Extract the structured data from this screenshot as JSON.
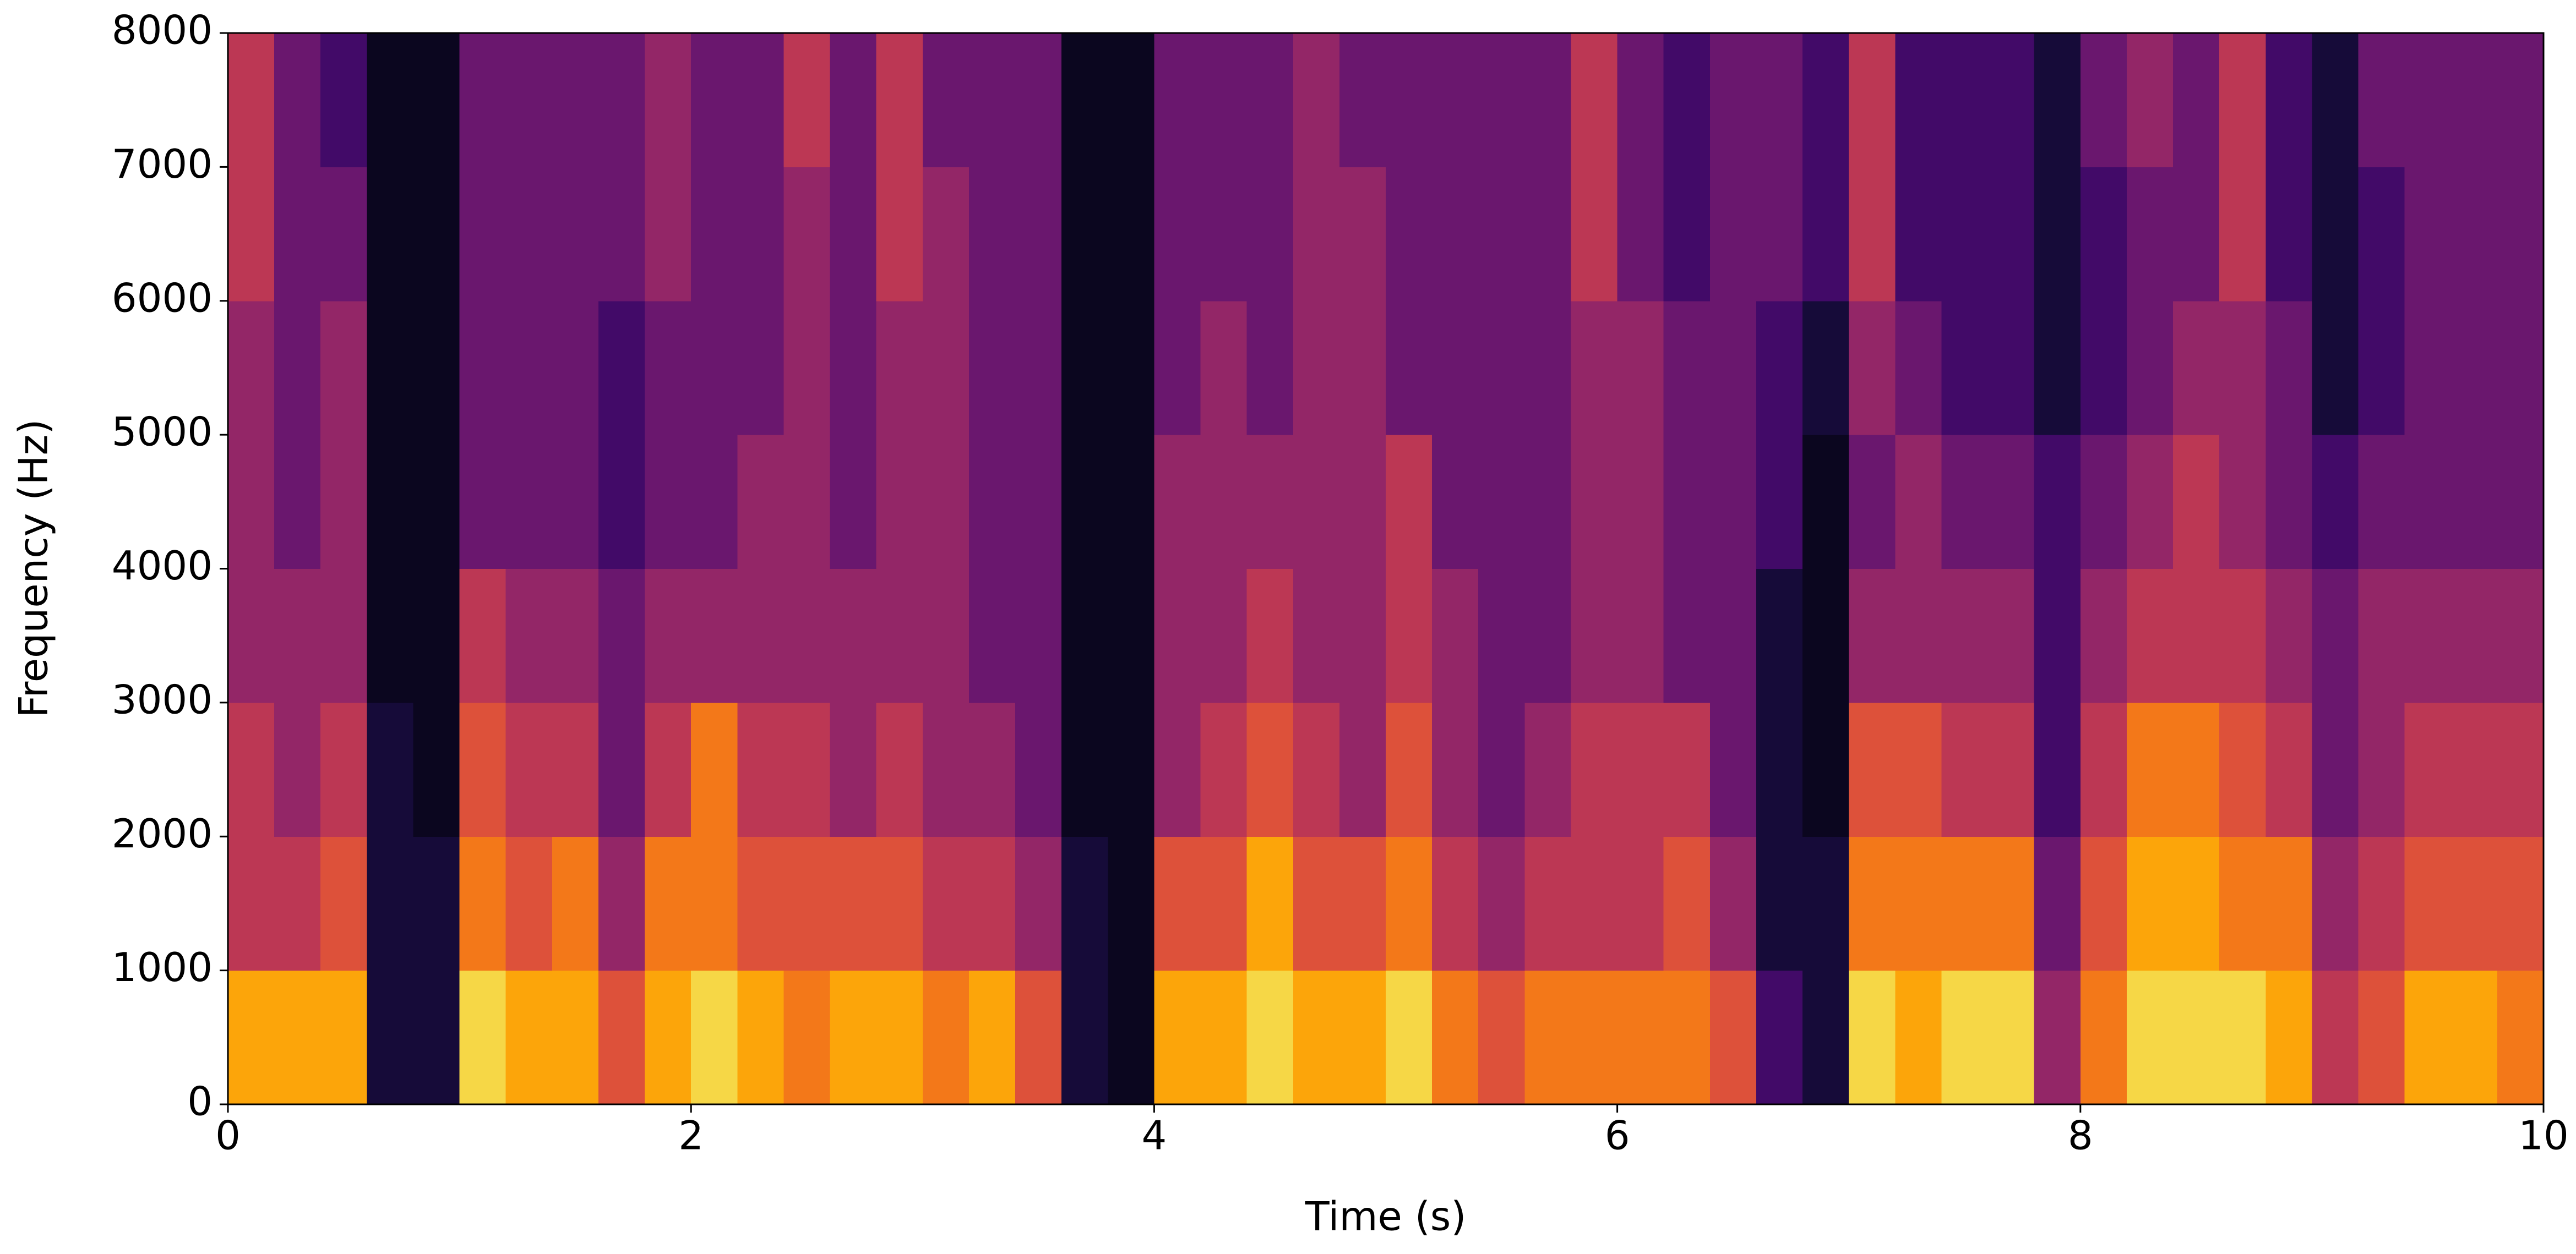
{
  "chart_data": {
    "type": "heatmap",
    "colormap": "inferno",
    "xlabel": "Time (s)",
    "ylabel": "Frequency (Hz)",
    "xlim": [
      0,
      10
    ],
    "ylim": [
      0,
      8000
    ],
    "zlim": [
      0,
      1
    ],
    "xticks": [
      0,
      2,
      4,
      6,
      8,
      10
    ],
    "yticks": [
      0,
      1000,
      2000,
      3000,
      4000,
      5000,
      6000,
      7000,
      8000
    ],
    "xbins": [
      0,
      0.2,
      0.4,
      0.6,
      0.8,
      1,
      1.2,
      1.4,
      1.6,
      1.8,
      2,
      2.2,
      2.4,
      2.6,
      2.8,
      3,
      3.2,
      3.4,
      3.6,
      3.8,
      4,
      4.2,
      4.4,
      4.6,
      4.8,
      5,
      5.2,
      5.4,
      5.6,
      5.8,
      6,
      6.2,
      6.4,
      6.6,
      6.8,
      7,
      7.2,
      7.4,
      7.6,
      7.8,
      8,
      8.2,
      8.4,
      8.6,
      8.8,
      9,
      9.2,
      9.4,
      9.6,
      9.8,
      10
    ],
    "ybins": [
      0,
      1000,
      2000,
      3000,
      4000,
      5000,
      6000,
      7000,
      8000
    ],
    "z": [
      [
        0.8,
        0.8,
        0.8,
        0.1,
        0.1,
        0.9,
        0.8,
        0.8,
        0.6,
        0.8,
        0.9,
        0.8,
        0.7,
        0.8,
        0.8,
        0.7,
        0.8,
        0.6,
        0.1,
        0.05,
        0.8,
        0.8,
        0.9,
        0.8,
        0.8,
        0.9,
        0.7,
        0.6,
        0.7,
        0.7,
        0.7,
        0.7,
        0.6,
        0.2,
        0.1,
        0.9,
        0.8,
        0.9,
        0.9,
        0.4,
        0.7,
        0.9,
        0.9,
        0.9,
        0.8,
        0.5,
        0.6,
        0.8,
        0.8,
        0.7
      ],
      [
        0.5,
        0.5,
        0.6,
        0.1,
        0.1,
        0.7,
        0.6,
        0.7,
        0.4,
        0.7,
        0.7,
        0.6,
        0.6,
        0.6,
        0.6,
        0.5,
        0.5,
        0.4,
        0.1,
        0.05,
        0.6,
        0.6,
        0.8,
        0.6,
        0.6,
        0.7,
        0.5,
        0.4,
        0.5,
        0.5,
        0.5,
        0.6,
        0.4,
        0.1,
        0.1,
        0.7,
        0.7,
        0.7,
        0.7,
        0.3,
        0.6,
        0.8,
        0.8,
        0.7,
        0.7,
        0.4,
        0.5,
        0.6,
        0.6,
        0.6
      ],
      [
        0.5,
        0.4,
        0.5,
        0.1,
        0.05,
        0.6,
        0.5,
        0.5,
        0.3,
        0.5,
        0.7,
        0.5,
        0.5,
        0.4,
        0.5,
        0.4,
        0.4,
        0.3,
        0.05,
        0.05,
        0.4,
        0.5,
        0.6,
        0.5,
        0.4,
        0.6,
        0.4,
        0.3,
        0.4,
        0.5,
        0.5,
        0.5,
        0.3,
        0.1,
        0.05,
        0.6,
        0.6,
        0.5,
        0.5,
        0.2,
        0.5,
        0.7,
        0.7,
        0.6,
        0.5,
        0.3,
        0.4,
        0.5,
        0.5,
        0.5
      ],
      [
        0.4,
        0.4,
        0.4,
        0.05,
        0.05,
        0.5,
        0.4,
        0.4,
        0.3,
        0.4,
        0.4,
        0.4,
        0.4,
        0.4,
        0.4,
        0.4,
        0.3,
        0.3,
        0.05,
        0.05,
        0.4,
        0.4,
        0.5,
        0.4,
        0.4,
        0.5,
        0.4,
        0.3,
        0.3,
        0.4,
        0.4,
        0.3,
        0.3,
        0.1,
        0.05,
        0.4,
        0.4,
        0.4,
        0.4,
        0.2,
        0.4,
        0.5,
        0.5,
        0.5,
        0.4,
        0.3,
        0.4,
        0.4,
        0.4,
        0.4
      ],
      [
        0.4,
        0.3,
        0.4,
        0.05,
        0.05,
        0.3,
        0.3,
        0.3,
        0.2,
        0.3,
        0.3,
        0.4,
        0.4,
        0.3,
        0.4,
        0.4,
        0.3,
        0.3,
        0.05,
        0.05,
        0.4,
        0.4,
        0.4,
        0.4,
        0.4,
        0.5,
        0.3,
        0.3,
        0.3,
        0.4,
        0.4,
        0.3,
        0.3,
        0.2,
        0.05,
        0.3,
        0.4,
        0.3,
        0.3,
        0.2,
        0.3,
        0.4,
        0.5,
        0.4,
        0.3,
        0.2,
        0.3,
        0.3,
        0.3,
        0.3
      ],
      [
        0.4,
        0.3,
        0.4,
        0.05,
        0.05,
        0.3,
        0.3,
        0.3,
        0.2,
        0.3,
        0.3,
        0.3,
        0.4,
        0.3,
        0.4,
        0.4,
        0.3,
        0.3,
        0.05,
        0.05,
        0.3,
        0.4,
        0.3,
        0.4,
        0.4,
        0.3,
        0.3,
        0.3,
        0.3,
        0.4,
        0.4,
        0.3,
        0.3,
        0.2,
        0.1,
        0.4,
        0.3,
        0.2,
        0.2,
        0.1,
        0.2,
        0.3,
        0.4,
        0.4,
        0.3,
        0.1,
        0.2,
        0.3,
        0.3,
        0.3
      ],
      [
        0.5,
        0.3,
        0.3,
        0.05,
        0.05,
        0.3,
        0.3,
        0.3,
        0.3,
        0.4,
        0.3,
        0.3,
        0.4,
        0.3,
        0.5,
        0.4,
        0.3,
        0.3,
        0.05,
        0.05,
        0.3,
        0.3,
        0.3,
        0.4,
        0.4,
        0.3,
        0.3,
        0.3,
        0.3,
        0.5,
        0.3,
        0.2,
        0.3,
        0.3,
        0.2,
        0.5,
        0.2,
        0.2,
        0.2,
        0.1,
        0.2,
        0.3,
        0.3,
        0.5,
        0.2,
        0.1,
        0.2,
        0.3,
        0.3,
        0.3
      ],
      [
        0.5,
        0.3,
        0.2,
        0.05,
        0.05,
        0.3,
        0.3,
        0.3,
        0.3,
        0.4,
        0.3,
        0.3,
        0.5,
        0.3,
        0.5,
        0.3,
        0.3,
        0.3,
        0.05,
        0.05,
        0.3,
        0.3,
        0.3,
        0.4,
        0.3,
        0.3,
        0.3,
        0.3,
        0.3,
        0.5,
        0.3,
        0.2,
        0.3,
        0.3,
        0.2,
        0.5,
        0.2,
        0.2,
        0.2,
        0.1,
        0.3,
        0.4,
        0.3,
        0.5,
        0.2,
        0.1,
        0.3,
        0.3,
        0.3,
        0.3
      ]
    ]
  }
}
